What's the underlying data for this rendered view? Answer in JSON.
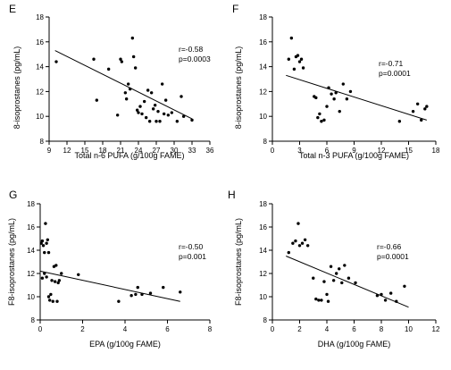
{
  "chart_data": [
    {
      "type": "scatter",
      "panel_label": "E",
      "xlabel": "Total n-6 PUFA (g/100g FAME)",
      "ylabel": "8-isoprostanes (pg/mL)",
      "xlim": [
        9,
        36
      ],
      "ylim": [
        8,
        18
      ],
      "xticks": [
        9,
        12,
        15,
        18,
        21,
        24,
        27,
        30,
        33,
        36
      ],
      "yticks": [
        8,
        10,
        12,
        14,
        16,
        18
      ],
      "stats": [
        "r=-0.58",
        "p=0.0003"
      ],
      "points": [
        [
          10.2,
          14.4
        ],
        [
          16.5,
          14.6
        ],
        [
          17.0,
          11.3
        ],
        [
          19.0,
          13.8
        ],
        [
          20.5,
          10.1
        ],
        [
          21.0,
          14.6
        ],
        [
          21.2,
          14.4
        ],
        [
          21.8,
          11.9
        ],
        [
          22.0,
          11.4
        ],
        [
          22.3,
          12.6
        ],
        [
          22.6,
          12.2
        ],
        [
          23.0,
          16.3
        ],
        [
          23.2,
          14.8
        ],
        [
          23.5,
          13.9
        ],
        [
          23.8,
          10.5
        ],
        [
          24.0,
          10.3
        ],
        [
          24.3,
          10.8
        ],
        [
          24.6,
          10.2
        ],
        [
          25.0,
          11.2
        ],
        [
          25.3,
          9.9
        ],
        [
          25.6,
          12.1
        ],
        [
          25.9,
          9.6
        ],
        [
          26.2,
          11.9
        ],
        [
          26.5,
          10.6
        ],
        [
          26.8,
          10.9
        ],
        [
          27.0,
          9.6
        ],
        [
          27.3,
          10.4
        ],
        [
          27.6,
          9.6
        ],
        [
          28.0,
          12.6
        ],
        [
          28.3,
          10.2
        ],
        [
          28.6,
          11.3
        ],
        [
          29.0,
          10.1
        ],
        [
          29.6,
          10.3
        ],
        [
          30.5,
          9.6
        ],
        [
          31.2,
          11.6
        ],
        [
          31.6,
          10.0
        ],
        [
          33.0,
          9.7
        ]
      ],
      "fit": {
        "x": [
          10,
          33
        ],
        "y": [
          15.3,
          9.8
        ]
      }
    },
    {
      "type": "scatter",
      "panel_label": "F",
      "xlabel": "Total n-3 PUFA (g/100g FAME)",
      "ylabel": "8-isoprostanes (pg/mL)",
      "xlim": [
        0,
        18
      ],
      "ylim": [
        8,
        18
      ],
      "xticks": [
        0,
        3,
        6,
        9,
        12,
        15,
        18
      ],
      "yticks": [
        8,
        10,
        12,
        14,
        16,
        18
      ],
      "stats": [
        "r=-0.71",
        "p=0.0001"
      ],
      "points": [
        [
          1.8,
          14.6
        ],
        [
          2.1,
          16.3
        ],
        [
          2.4,
          13.8
        ],
        [
          2.6,
          14.8
        ],
        [
          2.8,
          14.9
        ],
        [
          3.0,
          14.4
        ],
        [
          3.2,
          14.6
        ],
        [
          3.4,
          13.9
        ],
        [
          4.6,
          11.6
        ],
        [
          4.8,
          11.5
        ],
        [
          5.0,
          9.9
        ],
        [
          5.2,
          10.2
        ],
        [
          5.4,
          9.6
        ],
        [
          5.7,
          9.7
        ],
        [
          6.0,
          10.8
        ],
        [
          6.2,
          12.3
        ],
        [
          6.5,
          11.8
        ],
        [
          6.8,
          11.4
        ],
        [
          7.0,
          11.9
        ],
        [
          7.4,
          10.4
        ],
        [
          7.8,
          12.6
        ],
        [
          8.2,
          11.4
        ],
        [
          8.6,
          12.0
        ],
        [
          14.0,
          9.6
        ],
        [
          15.5,
          10.4
        ],
        [
          16.0,
          11.0
        ],
        [
          16.4,
          9.7
        ],
        [
          16.8,
          10.6
        ],
        [
          17.0,
          10.8
        ]
      ],
      "fit": {
        "x": [
          1.5,
          17
        ],
        "y": [
          13.3,
          9.7
        ]
      }
    },
    {
      "type": "scatter",
      "panel_label": "G",
      "xlabel": "EPA (g/100g FAME)",
      "ylabel": "F8-isoprostanes (pg/mL)",
      "xlim": [
        0,
        8
      ],
      "ylim": [
        8,
        18
      ],
      "xticks": [
        0,
        2,
        4,
        6,
        8
      ],
      "yticks": [
        8,
        10,
        12,
        14,
        16,
        18
      ],
      "stats": [
        "r=-0.50",
        "p=0.001"
      ],
      "points": [
        [
          0.05,
          14.6
        ],
        [
          0.1,
          14.8
        ],
        [
          0.15,
          14.4
        ],
        [
          0.2,
          13.8
        ],
        [
          0.25,
          16.3
        ],
        [
          0.3,
          14.6
        ],
        [
          0.35,
          14.9
        ],
        [
          0.4,
          13.8
        ],
        [
          0.1,
          11.6
        ],
        [
          0.2,
          12.0
        ],
        [
          0.3,
          11.7
        ],
        [
          0.4,
          10.0
        ],
        [
          0.45,
          9.7
        ],
        [
          0.5,
          10.2
        ],
        [
          0.55,
          11.4
        ],
        [
          0.6,
          9.6
        ],
        [
          0.65,
          12.6
        ],
        [
          0.7,
          11.3
        ],
        [
          0.75,
          12.7
        ],
        [
          0.8,
          9.6
        ],
        [
          0.85,
          11.2
        ],
        [
          0.9,
          11.4
        ],
        [
          1.0,
          12.0
        ],
        [
          1.8,
          11.9
        ],
        [
          3.7,
          9.6
        ],
        [
          4.3,
          10.1
        ],
        [
          4.5,
          10.2
        ],
        [
          4.6,
          10.8
        ],
        [
          4.8,
          10.2
        ],
        [
          5.2,
          10.3
        ],
        [
          5.8,
          10.8
        ],
        [
          6.6,
          10.4
        ]
      ],
      "fit": {
        "x": [
          0,
          6.6
        ],
        "y": [
          12.2,
          9.6
        ]
      }
    },
    {
      "type": "scatter",
      "panel_label": "H",
      "xlabel": "DHA (g/100g FAME)",
      "ylabel": "F8-isoprostanes (pg/mL)",
      "xlim": [
        0,
        12
      ],
      "ylim": [
        8,
        18
      ],
      "xticks": [
        0,
        2,
        4,
        6,
        8,
        10,
        12
      ],
      "yticks": [
        8,
        10,
        12,
        14,
        16,
        18
      ],
      "stats": [
        "r=-0.66",
        "p=0.0001"
      ],
      "points": [
        [
          1.2,
          13.8
        ],
        [
          1.5,
          14.6
        ],
        [
          1.7,
          14.8
        ],
        [
          1.9,
          16.3
        ],
        [
          2.0,
          14.4
        ],
        [
          2.2,
          14.6
        ],
        [
          2.4,
          14.9
        ],
        [
          2.6,
          14.4
        ],
        [
          3.0,
          11.6
        ],
        [
          3.2,
          9.8
        ],
        [
          3.4,
          9.7
        ],
        [
          3.6,
          9.7
        ],
        [
          3.8,
          11.3
        ],
        [
          4.0,
          10.2
        ],
        [
          4.1,
          9.6
        ],
        [
          4.3,
          12.6
        ],
        [
          4.5,
          11.4
        ],
        [
          4.7,
          12.0
        ],
        [
          4.9,
          12.4
        ],
        [
          5.1,
          11.2
        ],
        [
          5.3,
          12.7
        ],
        [
          5.6,
          11.6
        ],
        [
          6.1,
          11.2
        ],
        [
          7.7,
          10.1
        ],
        [
          8.0,
          10.2
        ],
        [
          8.3,
          9.7
        ],
        [
          8.7,
          10.3
        ],
        [
          9.1,
          9.6
        ],
        [
          9.7,
          10.9
        ]
      ],
      "fit": {
        "x": [
          1,
          10
        ],
        "y": [
          13.5,
          9.1
        ]
      }
    }
  ]
}
